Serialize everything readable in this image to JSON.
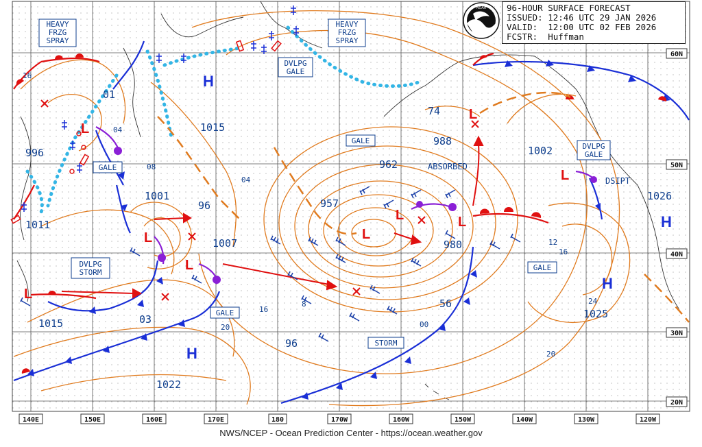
{
  "header": {
    "title": "96-HOUR SURFACE FORECAST",
    "issued_label": "ISSUED:",
    "issued": "12:46 UTC 29 JAN 2026",
    "valid_label": "VALID:",
    "valid": "12:00 UTC 02 FEB 2026",
    "forecaster_label": "FCSTR:",
    "forecaster": "Huffman"
  },
  "logo_text": "NOAA",
  "footer": "NWS/NCEP - Ocean Prediction Center - https://ocean.weather.gov",
  "lon_labels": [
    "140E",
    "150E",
    "160E",
    "170E",
    "180",
    "170W",
    "160W",
    "150W",
    "140W",
    "130W",
    "120W"
  ],
  "lat_labels": [
    "60N",
    "50N",
    "40N",
    "30N",
    "20N"
  ],
  "colors": {
    "isobar": "#e07b1f",
    "cold_front": "#1a2fd6",
    "warm_front": "#e01010",
    "occluded": "#8a1fd6",
    "ice": "#33b5e5",
    "pressure_label": "#0d3d8c",
    "high_letter": "#1a2fd6",
    "low_letter": "#e01010"
  },
  "pressure_labels": [
    {
      "text": "01"
    },
    {
      "text": "04"
    },
    {
      "text": "08"
    },
    {
      "text": "996"
    },
    {
      "text": "1011"
    },
    {
      "text": "1015"
    },
    {
      "text": "1001"
    },
    {
      "text": "96"
    },
    {
      "text": "1007"
    },
    {
      "text": "04"
    },
    {
      "text": "03"
    },
    {
      "text": "1015"
    },
    {
      "text": "20"
    },
    {
      "text": "16"
    },
    {
      "text": "8"
    },
    {
      "text": "96"
    },
    {
      "text": "1022"
    },
    {
      "text": "957"
    },
    {
      "text": "962"
    },
    {
      "text": "988"
    },
    {
      "text": "74"
    },
    {
      "text": "980"
    },
    {
      "text": "56"
    },
    {
      "text": "00"
    },
    {
      "text": "1002"
    },
    {
      "text": "12"
    },
    {
      "text": "16"
    },
    {
      "text": "1026"
    },
    {
      "text": "24"
    },
    {
      "text": "1025"
    },
    {
      "text": "20"
    },
    {
      "text": "16"
    }
  ],
  "warnings": [
    {
      "text": "HEAVY\nFRZG\nSPRAY"
    },
    {
      "text": "HEAVY\nFRZG\nSPRAY"
    },
    {
      "text": "DVLPG\nGALE"
    },
    {
      "text": "GALE"
    },
    {
      "text": "GALE"
    },
    {
      "text": "DVLPG\nSTORM"
    },
    {
      "text": "GALE"
    },
    {
      "text": "STORM"
    },
    {
      "text": "GALE"
    },
    {
      "text": "DVLPG\nGALE"
    }
  ],
  "annotations": [
    {
      "text": "ABSORBED"
    },
    {
      "text": "DSIPT"
    }
  ],
  "highs": [
    {
      "text": "H"
    },
    {
      "text": "H"
    },
    {
      "text": "H"
    },
    {
      "text": "H"
    }
  ],
  "lows": [
    {
      "text": "L"
    },
    {
      "text": "L"
    },
    {
      "text": "L"
    },
    {
      "text": "L"
    },
    {
      "text": "L"
    },
    {
      "text": "L"
    },
    {
      "text": "L"
    },
    {
      "text": "L"
    },
    {
      "text": "L"
    }
  ]
}
